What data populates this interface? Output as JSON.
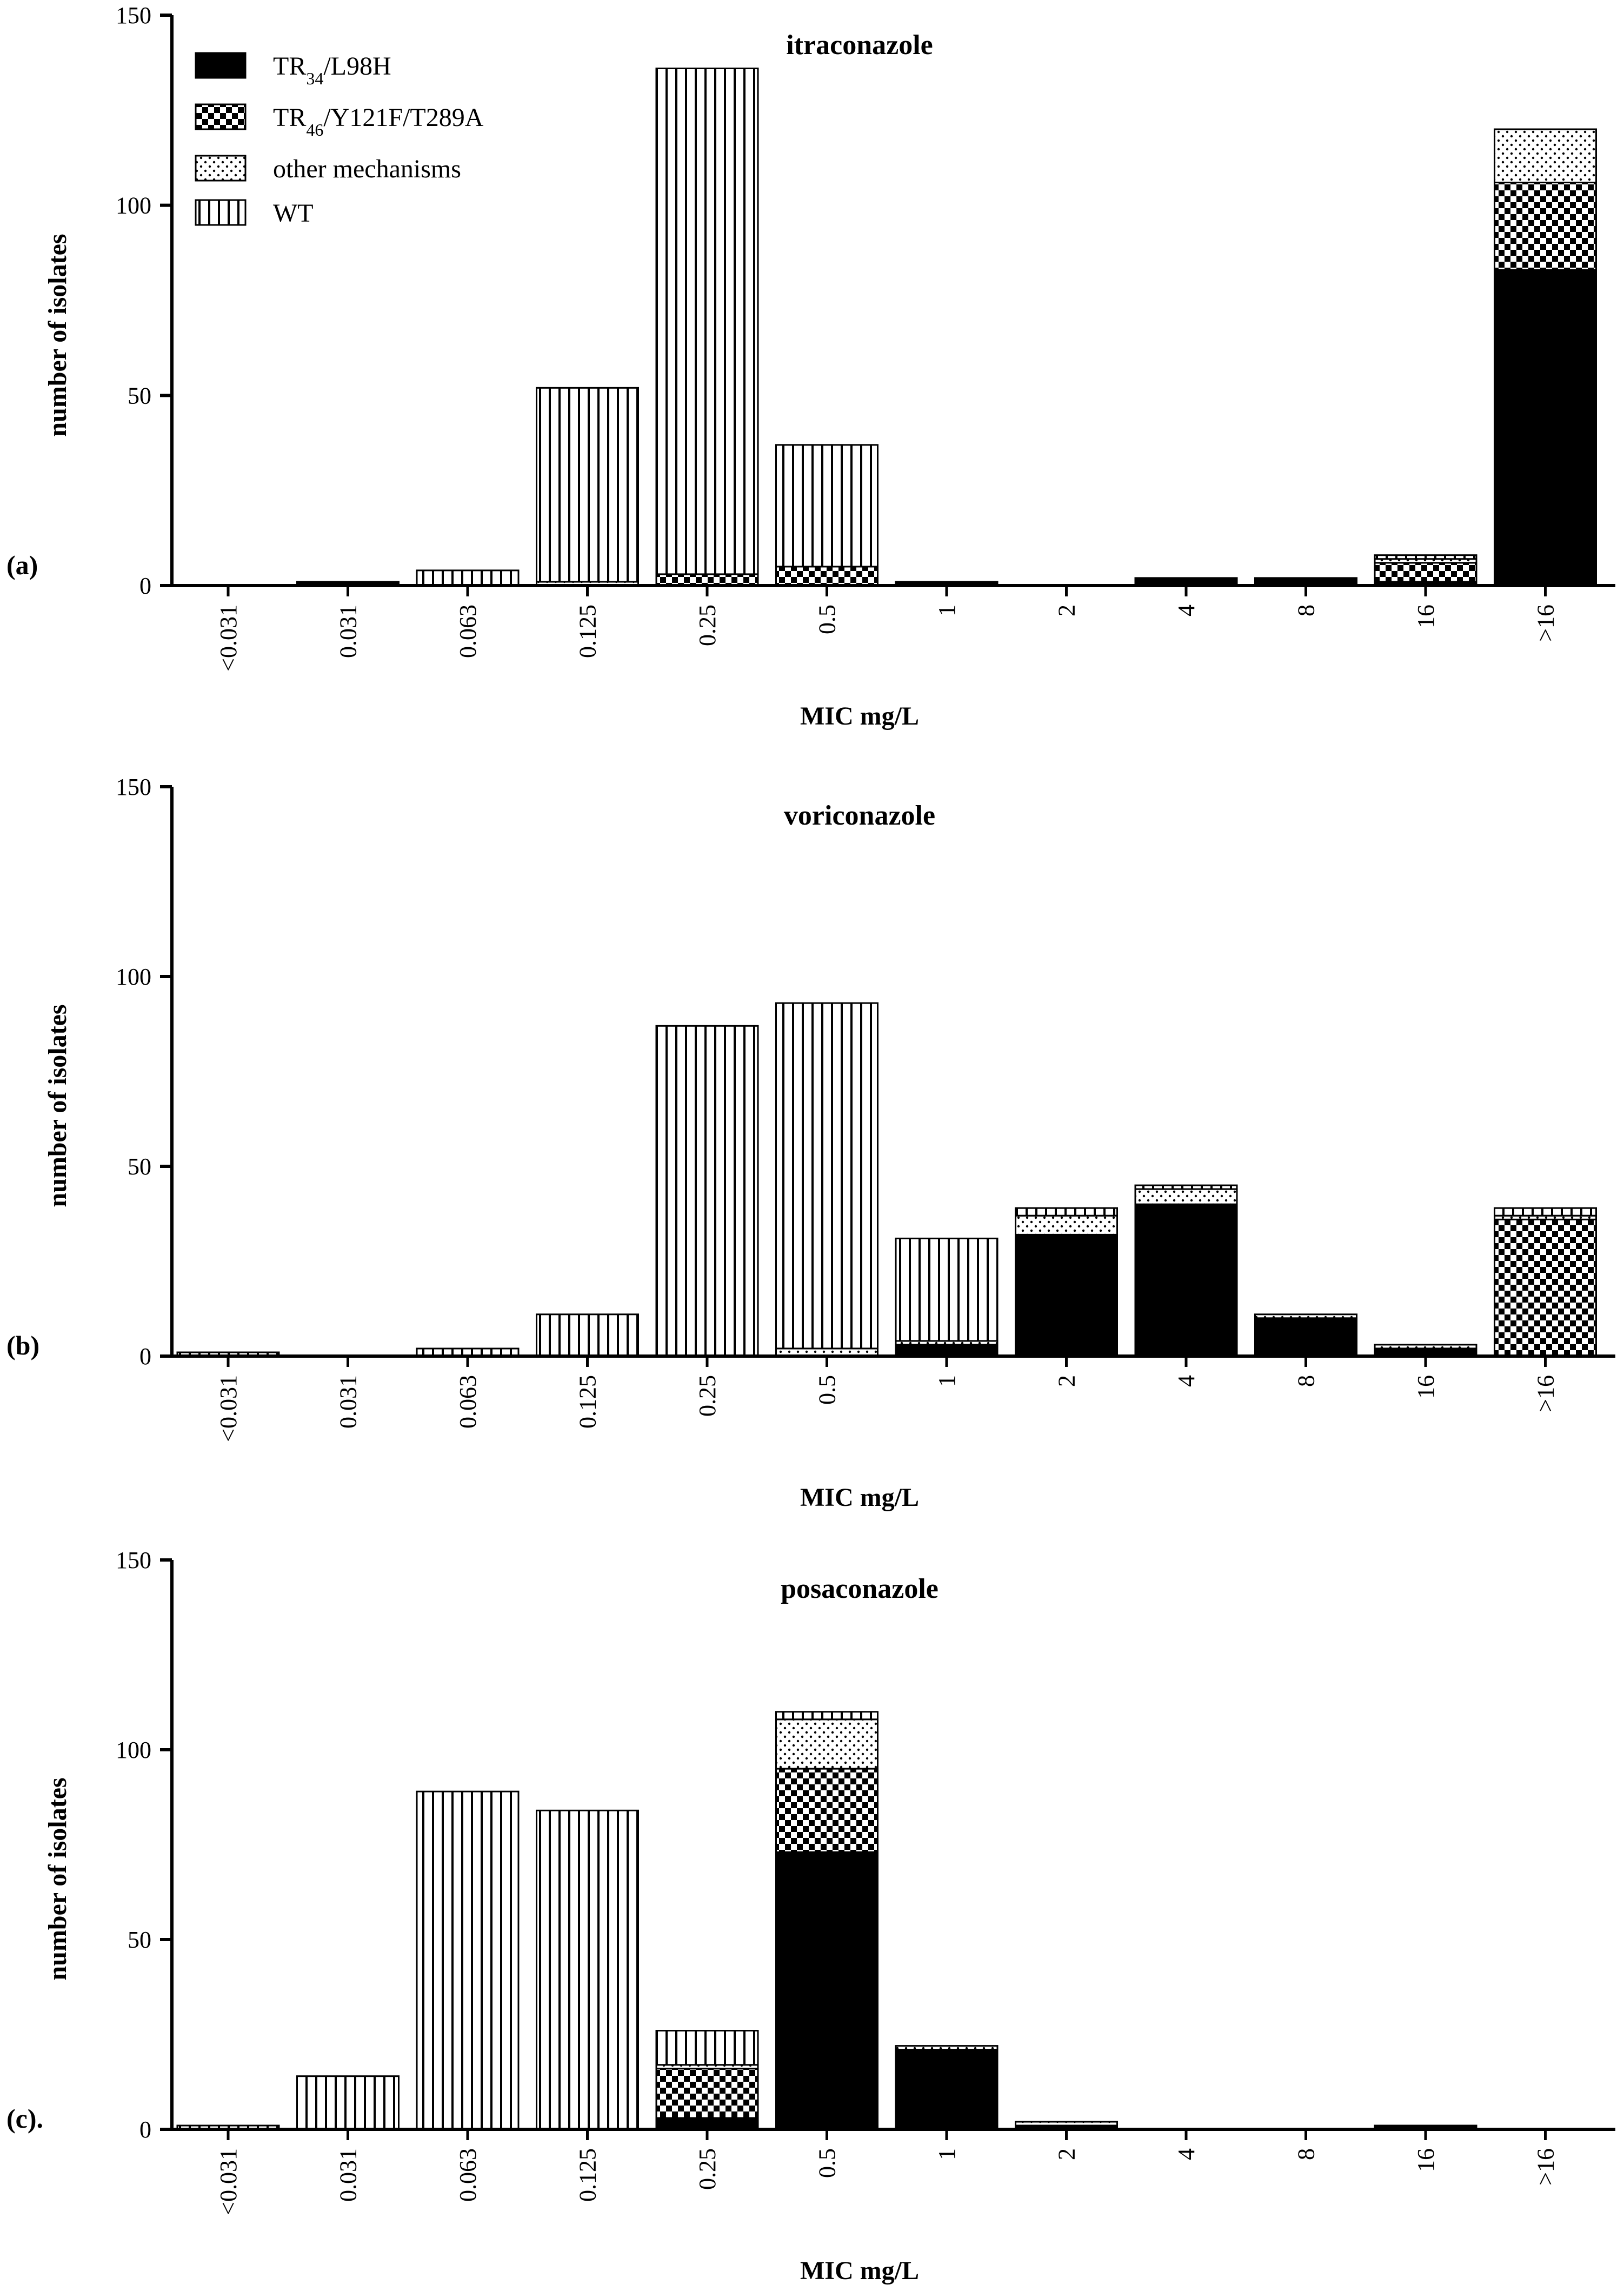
{
  "figure": {
    "colors": {
      "axis": "#000000",
      "bar_fill": "#ffffff",
      "solid": "#000000"
    },
    "legend": [
      {
        "key": "tr34",
        "pattern": "solid",
        "name_main": "TR",
        "name_sub": "34",
        "name_rest": "/L98H"
      },
      {
        "key": "tr46",
        "pattern": "checker",
        "name_main": "TR",
        "name_sub": "46",
        "name_rest": "/Y121F/T289A"
      },
      {
        "key": "other",
        "pattern": "dots",
        "name_main": "other mechanisms",
        "name_sub": "",
        "name_rest": ""
      },
      {
        "key": "wt",
        "pattern": "vlines",
        "name_main": "WT",
        "name_sub": "",
        "name_rest": ""
      }
    ]
  },
  "chart_data": [
    {
      "type": "bar",
      "stacked": true,
      "panel_label": "(a)",
      "title": "itraconazole",
      "xlabel": "MIC mg/L",
      "ylabel": "number of isolates",
      "ylim": [
        0,
        150
      ],
      "yticks": [
        "0",
        "50",
        "100",
        "150"
      ],
      "categories": [
        "<0.031",
        "0.031",
        "0.063",
        "0.125",
        "0.25",
        "0.5",
        "1",
        "2",
        "4",
        "8",
        "16",
        ">16"
      ],
      "series": [
        {
          "name": "TR34/L98H",
          "values": [
            0,
            1,
            0,
            0,
            0,
            0,
            1,
            0,
            2,
            2,
            1,
            83
          ]
        },
        {
          "name": "TR46/Y121F/T289A",
          "values": [
            0,
            0,
            0,
            0,
            3,
            5,
            0,
            0,
            0,
            0,
            5,
            23
          ]
        },
        {
          "name": "other mechanisms",
          "values": [
            0,
            0,
            0,
            1,
            0,
            0,
            0,
            0,
            0,
            0,
            1,
            14
          ]
        },
        {
          "name": "WT",
          "values": [
            0,
            0,
            4,
            51,
            133,
            32,
            0,
            0,
            0,
            0,
            1,
            0
          ]
        }
      ]
    },
    {
      "type": "bar",
      "stacked": true,
      "panel_label": "(b)",
      "title": "voriconazole",
      "xlabel": "MIC mg/L",
      "ylabel": "number of isolates",
      "ylim": [
        0,
        150
      ],
      "yticks": [
        "0",
        "50",
        "100",
        "150"
      ],
      "categories": [
        "<0.031",
        "0.031",
        "0.063",
        "0.125",
        "0.25",
        "0.5",
        "1",
        "2",
        "4",
        "8",
        "16",
        ">16"
      ],
      "series": [
        {
          "name": "TR34/L98H",
          "values": [
            0,
            0,
            0,
            0,
            0,
            0,
            3,
            32,
            40,
            10,
            2,
            0
          ]
        },
        {
          "name": "TR46/Y121F/T289A",
          "values": [
            0,
            0,
            0,
            0,
            0,
            0,
            0,
            0,
            0,
            0,
            0,
            36
          ]
        },
        {
          "name": "other mechanisms",
          "values": [
            0,
            0,
            0,
            0,
            0,
            2,
            1,
            5,
            4,
            1,
            1,
            1
          ]
        },
        {
          "name": "WT",
          "values": [
            1,
            0,
            2,
            11,
            87,
            91,
            27,
            2,
            1,
            0,
            0,
            2
          ]
        }
      ]
    },
    {
      "type": "bar",
      "stacked": true,
      "panel_label": "(c).",
      "title": "posaconazole",
      "xlabel": "MIC mg/L",
      "ylabel": "number of isolates",
      "ylim": [
        0,
        150
      ],
      "yticks": [
        "0",
        "50",
        "100",
        "150"
      ],
      "categories": [
        "<0.031",
        "0.031",
        "0.063",
        "0.125",
        "0.25",
        "0.5",
        "1",
        "2",
        "4",
        "8",
        "16",
        ">16"
      ],
      "series": [
        {
          "name": "TR34/L98H",
          "values": [
            0,
            0,
            0,
            0,
            3,
            73,
            21,
            1,
            0,
            0,
            1,
            0
          ]
        },
        {
          "name": "TR46/Y121F/T289A",
          "values": [
            0,
            0,
            0,
            0,
            13,
            22,
            0,
            0,
            0,
            0,
            0,
            0
          ]
        },
        {
          "name": "other mechanisms",
          "values": [
            0,
            0,
            0,
            0,
            1,
            13,
            1,
            1,
            0,
            0,
            0,
            0
          ]
        },
        {
          "name": "WT",
          "values": [
            1,
            14,
            89,
            84,
            9,
            2,
            0,
            0,
            0,
            0,
            0,
            0
          ]
        }
      ]
    }
  ]
}
